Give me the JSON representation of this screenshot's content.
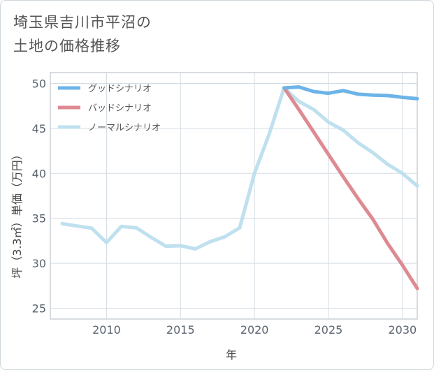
{
  "title_lines": [
    "埼玉県吉川市平沼の",
    "土地の価格推移"
  ],
  "chart_data": {
    "type": "line",
    "title": "埼玉県吉川市平沼の土地の価格推移",
    "xlabel": "年",
    "ylabel": "坪（3.3㎡）単価（万円）",
    "xlim": [
      2006.2,
      2031
    ],
    "ylim": [
      23.8,
      51.2
    ],
    "xticks": [
      2010,
      2015,
      2020,
      2025,
      2030
    ],
    "yticks": [
      25,
      30,
      35,
      40,
      45,
      50
    ],
    "grid": true,
    "legend_position": "top-left",
    "series": [
      {
        "name": "グッドシナリオ",
        "color": "#6cb4e8",
        "x": [
          2022,
          2023,
          2024,
          2025,
          2026,
          2027,
          2028,
          2029,
          2030,
          2031
        ],
        "y": [
          49.5,
          49.6,
          49.1,
          48.9,
          49.2,
          48.8,
          48.7,
          48.65,
          48.45,
          48.3
        ]
      },
      {
        "name": "バッドシナリオ",
        "color": "#dd8a92",
        "x": [
          2022,
          2023,
          2024,
          2025,
          2026,
          2027,
          2028,
          2029,
          2030,
          2031
        ],
        "y": [
          49.5,
          47.1,
          44.6,
          42.1,
          39.6,
          37.2,
          34.9,
          32.2,
          29.8,
          27.2
        ]
      },
      {
        "name": "ノーマルシナリオ",
        "color": "#bfe0ee",
        "x": [
          2007,
          2008,
          2009,
          2010,
          2011,
          2012,
          2013,
          2014,
          2015,
          2016,
          2017,
          2018,
          2019,
          2020,
          2021,
          2022,
          2023,
          2024,
          2025,
          2026,
          2027,
          2028,
          2029,
          2030,
          2031
        ],
        "y": [
          34.4,
          34.15,
          33.9,
          32.3,
          34.1,
          33.95,
          32.9,
          31.9,
          31.95,
          31.6,
          32.4,
          32.95,
          33.95,
          40.0,
          44.4,
          49.5,
          48.0,
          47.1,
          45.7,
          44.8,
          43.4,
          42.3,
          41.0,
          40.0,
          38.6
        ]
      }
    ]
  }
}
